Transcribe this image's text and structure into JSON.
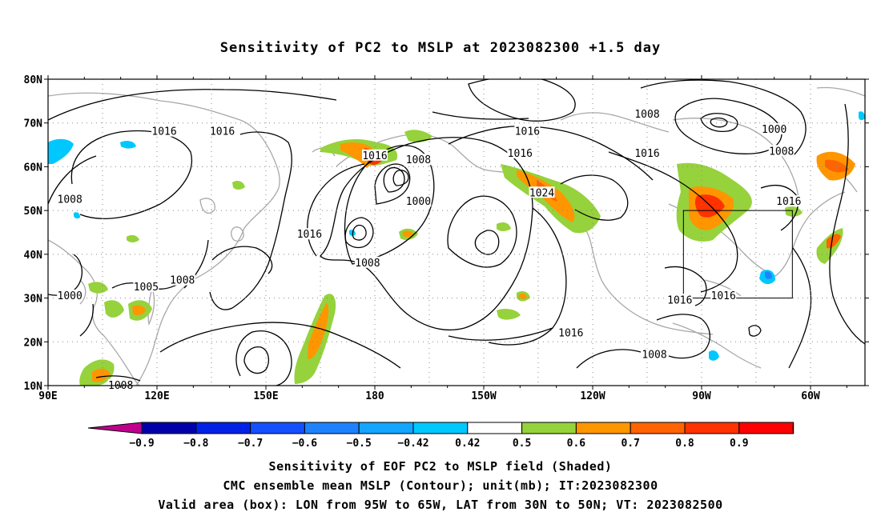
{
  "title": "Sensitivity of PC2 to MSLP at 2023082300 +1.5 day",
  "captions": {
    "line1": "Sensitivity of EOF PC2 to MSLP field (Shaded)",
    "line2": "CMC ensemble mean MSLP (Contour); unit(mb); IT:2023082300",
    "line3": "Valid area (box): LON from 95W to 65W, LAT from 30N to 50N; VT: 2023082500"
  },
  "map": {
    "lon_range": [
      90,
      315
    ],
    "lat_range": [
      10,
      80
    ],
    "lon_ticks": [
      {
        "lon": 90,
        "label": "90E"
      },
      {
        "lon": 120,
        "label": "120E"
      },
      {
        "lon": 150,
        "label": "150E"
      },
      {
        "lon": 180,
        "label": "180"
      },
      {
        "lon": 210,
        "label": "150W"
      },
      {
        "lon": 240,
        "label": "120W"
      },
      {
        "lon": 270,
        "label": "90W"
      },
      {
        "lon": 300,
        "label": "60W"
      }
    ],
    "lat_ticks": [
      {
        "lat": 80,
        "label": "80N"
      },
      {
        "lat": 70,
        "label": "70N"
      },
      {
        "lat": 60,
        "label": "60N"
      },
      {
        "lat": 50,
        "label": "50N"
      },
      {
        "lat": 40,
        "label": "40N"
      },
      {
        "lat": 30,
        "label": "30N"
      },
      {
        "lat": 20,
        "label": "20N"
      },
      {
        "lat": 10,
        "label": "10N"
      }
    ],
    "valid_box": {
      "lon_min": 265,
      "lon_max": 295,
      "lat_min": 30,
      "lat_max": 50
    },
    "contour_labels": [
      {
        "text": "1016",
        "lon": 122,
        "lat": 68
      },
      {
        "text": "1016",
        "lon": 138,
        "lat": 68
      },
      {
        "text": "1016",
        "lon": 180,
        "lat": 62.5
      },
      {
        "text": "1008",
        "lon": 192,
        "lat": 61.5
      },
      {
        "text": "1016",
        "lon": 222,
        "lat": 68
      },
      {
        "text": "1016",
        "lon": 220,
        "lat": 63
      },
      {
        "text": "1000",
        "lon": 192,
        "lat": 52
      },
      {
        "text": "1024",
        "lon": 226,
        "lat": 54
      },
      {
        "text": "1008",
        "lon": 255,
        "lat": 72
      },
      {
        "text": "1016",
        "lon": 255,
        "lat": 63
      },
      {
        "text": "1000",
        "lon": 290,
        "lat": 68.5
      },
      {
        "text": "1008",
        "lon": 292,
        "lat": 63.5
      },
      {
        "text": "1016",
        "lon": 294,
        "lat": 52
      },
      {
        "text": "1008",
        "lon": 96,
        "lat": 52.5
      },
      {
        "text": "1016",
        "lon": 162,
        "lat": 44.5
      },
      {
        "text": "1008",
        "lon": 178,
        "lat": 38
      },
      {
        "text": "1005",
        "lon": 117,
        "lat": 32.5
      },
      {
        "text": "1008",
        "lon": 127,
        "lat": 34
      },
      {
        "text": "1000",
        "lon": 96,
        "lat": 30.5
      },
      {
        "text": "1016",
        "lon": 234,
        "lat": 22
      },
      {
        "text": "1016",
        "lon": 264,
        "lat": 29.5
      },
      {
        "text": "1016",
        "lon": 276,
        "lat": 30.5
      },
      {
        "text": "1008",
        "lon": 257,
        "lat": 17
      },
      {
        "text": "1008",
        "lon": 110,
        "lat": 10
      }
    ]
  },
  "colorbar": {
    "levels": [
      "-0.9",
      "-0.8",
      "-0.7",
      "-0.6",
      "-0.5",
      "-0.42",
      "0.42",
      "0.5",
      "0.6",
      "0.7",
      "0.8",
      "0.9"
    ],
    "colors": [
      "#c0008c",
      "#0000aa",
      "#0022e6",
      "#1450ff",
      "#1e82ff",
      "#14a5ff",
      "#00c8ff",
      "#ffffff",
      "#96d23c",
      "#ff9600",
      "#ff6400",
      "#ff3200",
      "#ff0000",
      "#ff96c8"
    ]
  }
}
